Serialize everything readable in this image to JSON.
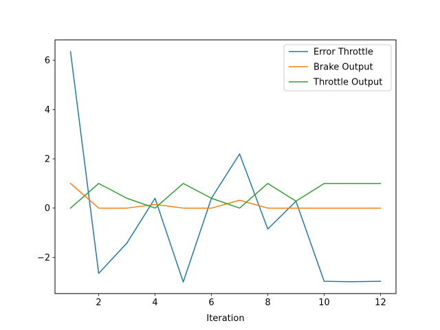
{
  "chart_data": {
    "type": "line",
    "title": "",
    "xlabel": "Iteration",
    "ylabel": "",
    "x": [
      1,
      2,
      3,
      4,
      5,
      6,
      7,
      8,
      9,
      10,
      11,
      12
    ],
    "xlim": [
      0.45,
      12.55
    ],
    "ylim": [
      -3.47,
      6.83
    ],
    "xticks": [
      2,
      4,
      6,
      8,
      10,
      12
    ],
    "yticks": [
      -2,
      0,
      2,
      4,
      6
    ],
    "ytick_labels": [
      "−2",
      "0",
      "2",
      "4",
      "6"
    ],
    "grid": false,
    "legend_position": "top-right",
    "series": [
      {
        "name": "Error Throttle",
        "color": "#1f77b4",
        "values": [
          6.35,
          -2.65,
          -1.42,
          0.4,
          -3.0,
          0.4,
          2.2,
          -0.85,
          0.28,
          -2.97,
          -2.99,
          -2.97
        ]
      },
      {
        "name": "Brake Output",
        "color": "#ff7f0e",
        "values": [
          1.0,
          0.0,
          0.0,
          0.15,
          0.0,
          0.0,
          0.32,
          0.0,
          0.0,
          0.0,
          0.0,
          0.0
        ]
      },
      {
        "name": "Throttle Output",
        "color": "#2ca02c",
        "values": [
          0.0,
          1.0,
          0.4,
          0.0,
          1.0,
          0.4,
          0.0,
          1.0,
          0.28,
          1.0,
          1.0,
          1.0
        ]
      }
    ]
  }
}
